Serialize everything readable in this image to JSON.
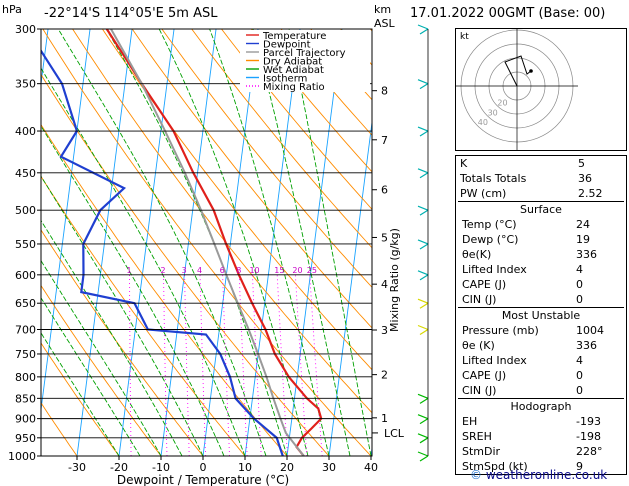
{
  "header": {
    "location": "-22°14'S  114°05'E  5m  ASL",
    "date": "17.01.2022  00GMT  (Base: 00)",
    "unit_left": "hPa",
    "unit_right_km": "km",
    "unit_right_asl": "ASL"
  },
  "footer": {
    "credit": "weatheronline.co.uk",
    "credit_symbol": "©"
  },
  "chart_data": {
    "type": "line",
    "title": "-22°14'S 114°05'E 5m ASL",
    "xlabel": "Dewpoint / Temperature (°C)",
    "ylabel": "hPa",
    "right_label": "Mixing Ratio (g/kg)",
    "xlim": [
      -35,
      40
    ],
    "ylim": [
      1000,
      300
    ],
    "x_ticks": [
      -30,
      -20,
      -10,
      0,
      10,
      20,
      30,
      40
    ],
    "pressure_levels": [
      300,
      350,
      400,
      450,
      500,
      550,
      600,
      650,
      700,
      750,
      800,
      850,
      900,
      950,
      1000
    ],
    "km_ticks": [
      {
        "label": "8",
        "p": 357
      },
      {
        "label": "7",
        "p": 410
      },
      {
        "label": "6",
        "p": 472
      },
      {
        "label": "5",
        "p": 540
      },
      {
        "label": "4",
        "p": 616
      },
      {
        "label": "3",
        "p": 701
      },
      {
        "label": "2",
        "p": 795
      },
      {
        "label": "1",
        "p": 898
      }
    ],
    "lcl": {
      "label": "LCL",
      "p": 937
    },
    "mixing_ratio_labels": [
      "1",
      "2",
      "3",
      "4",
      "6",
      "8",
      "10",
      "15",
      "20",
      "25"
    ],
    "legend": [
      {
        "label": "Temperature",
        "color": "#e0201b",
        "style": "solid"
      },
      {
        "label": "Dewpoint",
        "color": "#1f3fd0",
        "style": "solid"
      },
      {
        "label": "Parcel Trajectory",
        "color": "#9a9a9a",
        "style": "solid"
      },
      {
        "label": "Dry Adiabat",
        "color": "#ff8c00",
        "style": "solid"
      },
      {
        "label": "Wet Adiabat",
        "color": "#00a000",
        "style": "solid"
      },
      {
        "label": "Isotherm",
        "color": "#1aa3ff",
        "style": "solid"
      },
      {
        "label": "Mixing Ratio",
        "color": "#ff00ff",
        "style": "dotted"
      }
    ],
    "series": [
      {
        "name": "Temperature",
        "color": "#e0201b",
        "points": [
          {
            "p": 1000,
            "t": 24
          },
          {
            "p": 975,
            "t": 22
          },
          {
            "p": 950,
            "t": 23
          },
          {
            "p": 925,
            "t": 25
          },
          {
            "p": 900,
            "t": 27
          },
          {
            "p": 875,
            "t": 26
          },
          {
            "p": 850,
            "t": 23
          },
          {
            "p": 800,
            "t": 18
          },
          {
            "p": 750,
            "t": 14
          },
          {
            "p": 700,
            "t": 11
          },
          {
            "p": 650,
            "t": 7
          },
          {
            "p": 600,
            "t": 3
          },
          {
            "p": 550,
            "t": -1
          },
          {
            "p": 500,
            "t": -5
          },
          {
            "p": 450,
            "t": -11
          },
          {
            "p": 400,
            "t": -17
          },
          {
            "p": 350,
            "t": -26
          },
          {
            "p": 300,
            "t": -36
          }
        ]
      },
      {
        "name": "Dewpoint",
        "color": "#1f3fd0",
        "points": [
          {
            "p": 1000,
            "t": 19
          },
          {
            "p": 950,
            "t": 17
          },
          {
            "p": 900,
            "t": 11
          },
          {
            "p": 850,
            "t": 6
          },
          {
            "p": 800,
            "t": 4
          },
          {
            "p": 750,
            "t": 1
          },
          {
            "p": 710,
            "t": -3
          },
          {
            "p": 700,
            "t": -17
          },
          {
            "p": 650,
            "t": -21
          },
          {
            "p": 630,
            "t": -34
          },
          {
            "p": 600,
            "t": -34
          },
          {
            "p": 550,
            "t": -35
          },
          {
            "p": 500,
            "t": -32
          },
          {
            "p": 470,
            "t": -27
          },
          {
            "p": 430,
            "t": -43
          },
          {
            "p": 400,
            "t": -40
          },
          {
            "p": 350,
            "t": -45
          },
          {
            "p": 300,
            "t": -55
          }
        ]
      },
      {
        "name": "Parcel Trajectory",
        "color": "#9a9a9a",
        "points": [
          {
            "p": 1000,
            "t": 24
          },
          {
            "p": 937,
            "t": 19
          },
          {
            "p": 900,
            "t": 17.3
          },
          {
            "p": 850,
            "t": 15
          },
          {
            "p": 800,
            "t": 12.7
          },
          {
            "p": 750,
            "t": 10
          },
          {
            "p": 700,
            "t": 7
          },
          {
            "p": 650,
            "t": 3.6
          },
          {
            "p": 600,
            "t": 0
          },
          {
            "p": 550,
            "t": -3.8
          },
          {
            "p": 500,
            "t": -8
          },
          {
            "p": 450,
            "t": -13
          },
          {
            "p": 400,
            "t": -19
          },
          {
            "p": 350,
            "t": -26
          },
          {
            "p": 300,
            "t": -35
          }
        ]
      }
    ]
  },
  "hodograph": {
    "label": "kt",
    "ring_labels": [
      "20",
      "30",
      "40"
    ]
  },
  "indices": [
    {
      "label": "K",
      "value": "5"
    },
    {
      "label": "Totals Totals",
      "value": "36"
    },
    {
      "label": "PW (cm)",
      "value": "2.52"
    }
  ],
  "surface": {
    "title": "Surface",
    "rows": [
      {
        "label": "Temp (°C)",
        "value": "24"
      },
      {
        "label": "Dewp (°C)",
        "value": "19"
      },
      {
        "label": "θe(K)",
        "value": "336"
      },
      {
        "label": "Lifted Index",
        "value": "4"
      },
      {
        "label": "CAPE (J)",
        "value": "0"
      },
      {
        "label": "CIN (J)",
        "value": "0"
      }
    ]
  },
  "most_unstable": {
    "title": "Most Unstable",
    "rows": [
      {
        "label": "Pressure (mb)",
        "value": "1004"
      },
      {
        "label": "θe (K)",
        "value": "336"
      },
      {
        "label": "Lifted Index",
        "value": "4"
      },
      {
        "label": "CAPE (J)",
        "value": "0"
      },
      {
        "label": "CIN (J)",
        "value": "0"
      }
    ]
  },
  "hodo_table": {
    "title": "Hodograph",
    "rows": [
      {
        "label": "EH",
        "value": "-193"
      },
      {
        "label": "SREH",
        "value": "-198"
      },
      {
        "label": "StmDir",
        "value": "228°"
      },
      {
        "label": "StmSpd (kt)",
        "value": "9"
      }
    ]
  }
}
